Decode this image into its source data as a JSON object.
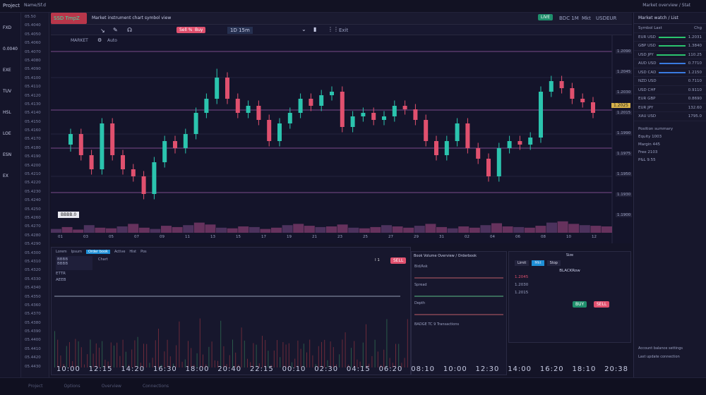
{
  "topbar": {
    "project": "Project",
    "menu": "Name/Sf.d",
    "right": "Market overview / Stat"
  },
  "toolbar": {
    "badge": "SSD TmpZ",
    "title": "Market instrument chart symbol view",
    "btn1": "Sell %",
    "btn2": "Buy",
    "interval": "1D 15m",
    "label": "Exit",
    "live": "LIVE",
    "status": "BDC 1M",
    "market": "Mkt",
    "sym": "USDEUR"
  },
  "toolbar2": {
    "label": "MARKET",
    "item": "Auto"
  },
  "chart": {
    "marker": "BBBB.0",
    "price_labels": [
      "1.2090",
      "1.2045",
      "1.2030",
      "1.2015",
      "1.1990",
      "1.1975",
      "1.1950",
      "1.1930",
      "1.1900"
    ],
    "highlight_price": "1.2025",
    "time_labels": [
      "01",
      "03",
      "05",
      "07",
      "09",
      "11",
      "13",
      "15",
      "17",
      "19",
      "21",
      "23",
      "25",
      "27",
      "29",
      "31",
      "02",
      "04",
      "06",
      "08",
      "10",
      "12"
    ]
  },
  "chart_data": {
    "type": "candlestick",
    "candles": [
      [
        44,
        53,
        40,
        50
      ],
      [
        50,
        53,
        35,
        38
      ],
      [
        38,
        41,
        27,
        30
      ],
      [
        30,
        59,
        27,
        56
      ],
      [
        56,
        59,
        35,
        38
      ],
      [
        38,
        41,
        27,
        30
      ],
      [
        30,
        33,
        23,
        26
      ],
      [
        26,
        29,
        13,
        16
      ],
      [
        16,
        37,
        13,
        34
      ],
      [
        34,
        49,
        31,
        46
      ],
      [
        46,
        49,
        39,
        42
      ],
      [
        42,
        53,
        39,
        50
      ],
      [
        50,
        65,
        47,
        62
      ],
      [
        62,
        73,
        59,
        70
      ],
      [
        70,
        87,
        67,
        82
      ],
      [
        82,
        85,
        67,
        70
      ],
      [
        70,
        73,
        59,
        62
      ],
      [
        62,
        69,
        59,
        66
      ],
      [
        66,
        69,
        55,
        58
      ],
      [
        58,
        61,
        43,
        46
      ],
      [
        46,
        59,
        43,
        56
      ],
      [
        56,
        65,
        53,
        62
      ],
      [
        62,
        73,
        59,
        70
      ],
      [
        70,
        73,
        63,
        66
      ],
      [
        66,
        75,
        63,
        72
      ],
      [
        72,
        77,
        69,
        74
      ],
      [
        74,
        77,
        51,
        54
      ],
      [
        54,
        63,
        51,
        60
      ],
      [
        60,
        65,
        57,
        62
      ],
      [
        62,
        65,
        55,
        58
      ],
      [
        58,
        63,
        55,
        60
      ],
      [
        60,
        69,
        57,
        66
      ],
      [
        66,
        69,
        61,
        64
      ],
      [
        64,
        67,
        55,
        58
      ],
      [
        58,
        61,
        43,
        46
      ],
      [
        46,
        49,
        35,
        38
      ],
      [
        38,
        49,
        35,
        46
      ],
      [
        46,
        59,
        43,
        56
      ],
      [
        56,
        59,
        39,
        42
      ],
      [
        42,
        45,
        33,
        36
      ],
      [
        36,
        39,
        23,
        26
      ],
      [
        26,
        45,
        23,
        42
      ],
      [
        42,
        49,
        39,
        46
      ],
      [
        46,
        49,
        41,
        44
      ],
      [
        44,
        51,
        41,
        48
      ],
      [
        48,
        77,
        45,
        74
      ],
      [
        74,
        83,
        71,
        80
      ],
      [
        80,
        83,
        73,
        76
      ],
      [
        76,
        79,
        67,
        70
      ],
      [
        70,
        73,
        65,
        68
      ],
      [
        68,
        71,
        59,
        62
      ]
    ],
    "volume": [
      30,
      45,
      25,
      60,
      40,
      35,
      50,
      70,
      40,
      30,
      55,
      45,
      60,
      80,
      65,
      40,
      35,
      50,
      45,
      30,
      40,
      60,
      70,
      55,
      45,
      50,
      65,
      40,
      35,
      45,
      60,
      50,
      40,
      55,
      70,
      45,
      35,
      50,
      40,
      60,
      75,
      50,
      45,
      40,
      55,
      80,
      90,
      70,
      60,
      55,
      50
    ],
    "up_color": "#2bc4ae",
    "down_color": "#e0506e"
  },
  "bottom": {
    "tabs": [
      "Lorem",
      "Ipsum",
      "Order book",
      "Active",
      "Hist",
      "Pos"
    ],
    "active_tab": "Order book",
    "box1": [
      "BBBB",
      "BBBB",
      "ETTR",
      "AEEB"
    ],
    "box_note": "Chart",
    "sell": "SELL",
    "ctrl": "I 1",
    "mid_title": "Book Volume Overview / Orderbook",
    "mid_rows": [
      "Bid/Ask",
      "Spread",
      "Depth"
    ],
    "mid_footer": "BADGE TC 9 Transactions",
    "right_title": "Size",
    "right_btns": [
      "Limit",
      "Mkt",
      "Stop"
    ],
    "order_title": "BLACKRow",
    "order_rows": [
      "1.2045",
      "1.2030",
      "1.2015"
    ],
    "buy": "BUY",
    "sell2": "SELL",
    "time_ticks": [
      "10:00",
      "12:15",
      "14:20",
      "16:30",
      "18:00",
      "20:40",
      "22:15",
      "00:10",
      "02:30",
      "04:15",
      "06:20",
      "08:10",
      "10:00",
      "12:30",
      "14:00",
      "16:20",
      "18:10",
      "20:38"
    ]
  },
  "right": {
    "title": "Market watch / List",
    "rows": [
      [
        "Symbol Last",
        "Chg"
      ],
      [
        "EUR USD",
        "1.2031"
      ],
      [
        "GBP USD",
        "1.3840"
      ],
      [
        "USD JPY",
        "110.25"
      ],
      [
        "AUD USD",
        "0.7710"
      ],
      [
        "USD CAD",
        "1.2150"
      ],
      [
        "NZD USD",
        "0.7110"
      ],
      [
        "USD CHF",
        "0.9110"
      ],
      [
        "EUR GBP",
        "0.8690"
      ],
      [
        "EUR JPY",
        "132.60"
      ],
      [
        "XAU USD",
        "1795.0"
      ]
    ],
    "notes": [
      "Position summary",
      "Equity 1003",
      "Margin 445",
      "Free 2103",
      "P&L 9.55"
    ],
    "footer": [
      "Account balance settings",
      "Last update connection"
    ]
  },
  "footer": {
    "items": [
      "Project",
      "Options",
      "Overview",
      "Connections"
    ]
  },
  "sidebar": {
    "items": [
      "FXD",
      "0.0040",
      "EXE",
      "TUV",
      "HSL",
      "LOE",
      "ESN",
      "EX"
    ]
  },
  "list": [
    "05.50",
    "05.4040",
    "05.4050",
    "05.4060",
    "05.4070",
    "05.4080",
    "05.4090",
    "05.4100",
    "05.4110",
    "05.4120",
    "05.4130",
    "05.4140",
    "05.4150",
    "05.4160",
    "05.4170",
    "05.4180",
    "05.4190",
    "05.4200",
    "05.4210",
    "05.4220",
    "05.4230",
    "05.4240",
    "05.4250",
    "05.4260",
    "05.4270",
    "05.4280",
    "05.4290",
    "05.4300",
    "05.4310",
    "05.4320",
    "05.4330",
    "05.4340",
    "05.4350",
    "05.4360",
    "05.4370",
    "05.4380",
    "05.4390",
    "05.4400",
    "05.4410",
    "05.4420",
    "05.4430"
  ]
}
